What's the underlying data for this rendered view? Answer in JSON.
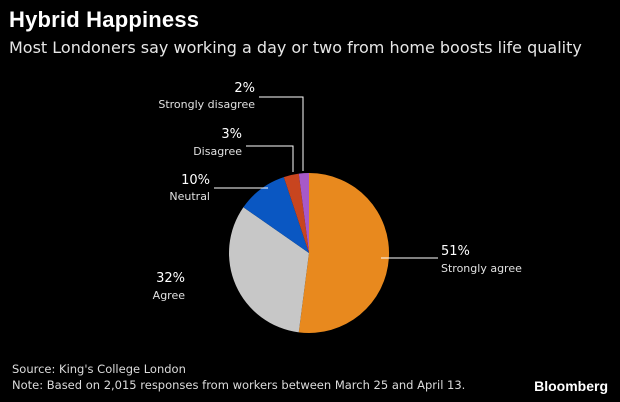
{
  "header": {
    "title": "Hybrid Happiness",
    "subtitle": "Most Londoners say working a day or two from home boosts life quality"
  },
  "footer": {
    "source": "Source: King's College London",
    "note": "Note: Based on 2,015 responses from workers between March 25 and April 13.",
    "brand": "Bloomberg"
  },
  "chart_data": {
    "type": "pie",
    "title": "Hybrid Happiness",
    "subtitle": "Most Londoners say working a day or two from home boosts life quality",
    "slices": [
      {
        "label": "Strongly agree",
        "value": 51,
        "display": "51%",
        "color": "#e8891e"
      },
      {
        "label": "Agree",
        "value": 32,
        "display": "32%",
        "color": "#c7c7c7"
      },
      {
        "label": "Neutral",
        "value": 10,
        "display": "10%",
        "color": "#0a57c2"
      },
      {
        "label": "Disagree",
        "value": 3,
        "display": "3%",
        "color": "#c8451f"
      },
      {
        "label": "Strongly disagree",
        "value": 2,
        "display": "2%",
        "color": "#a759c9"
      }
    ],
    "start": "12 o'clock",
    "direction": "clockwise",
    "legend": "none; labels with leader lines"
  }
}
